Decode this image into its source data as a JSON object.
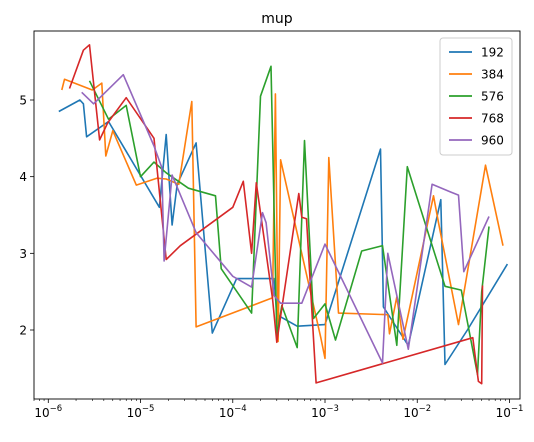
{
  "chart_data": {
    "type": "line",
    "title": "mup",
    "xlabel": "",
    "ylabel": "",
    "xscale": "log",
    "xlim": [
      7e-07,
      0.13
    ],
    "ylim": [
      1.1,
      5.9
    ],
    "xticks": [
      {
        "value": 1e-06,
        "base": "10",
        "exp": "−6"
      },
      {
        "value": 1e-05,
        "base": "10",
        "exp": "−5"
      },
      {
        "value": 0.0001,
        "base": "10",
        "exp": "−4"
      },
      {
        "value": 0.001,
        "base": "10",
        "exp": "−3"
      },
      {
        "value": 0.01,
        "base": "10",
        "exp": "−2"
      },
      {
        "value": 0.1,
        "base": "10",
        "exp": "−1"
      }
    ],
    "yticks": [
      {
        "value": 2,
        "label": "2"
      },
      {
        "value": 3,
        "label": "3"
      },
      {
        "value": 4,
        "label": "4"
      },
      {
        "value": 5,
        "label": "5"
      }
    ],
    "grid": false,
    "legend_position": "top-right",
    "series": [
      {
        "name": "192",
        "color": "#1f77b4",
        "x": [
          1.3e-06,
          2.2e-06,
          2.4e-06,
          2.6e-06,
          4.5e-06,
          1.6e-05,
          1.9e-05,
          2.2e-05,
          2.5e-05,
          4e-05,
          6e-05,
          0.00011,
          0.00028,
          0.0003,
          0.0005,
          0.001,
          0.004,
          0.0043,
          0.0075,
          0.008,
          0.018,
          0.02,
          0.035,
          0.095
        ],
        "y": [
          4.85,
          5.0,
          4.95,
          4.52,
          4.72,
          3.6,
          4.55,
          3.37,
          3.9,
          4.44,
          1.96,
          2.67,
          2.67,
          2.2,
          2.05,
          2.07,
          4.36,
          2.3,
          1.85,
          1.8,
          3.7,
          1.55,
          2.0,
          2.86
        ]
      },
      {
        "name": "384",
        "color": "#ff7f0e",
        "x": [
          1.4e-06,
          1.5e-06,
          3e-06,
          3.8e-06,
          4.2e-06,
          5e-06,
          9e-06,
          1.5e-05,
          1.9e-05,
          2.6e-05,
          3.6e-05,
          4e-05,
          0.00027,
          0.00029,
          0.00031,
          0.00033,
          0.0009,
          0.001,
          0.0011,
          0.0014,
          0.0048,
          0.005,
          0.006,
          0.007,
          0.015,
          0.017,
          0.028,
          0.055,
          0.085
        ],
        "y": [
          5.13,
          5.27,
          5.13,
          5.22,
          4.27,
          4.6,
          3.89,
          3.98,
          3.97,
          3.9,
          4.98,
          2.04,
          2.42,
          5.08,
          1.85,
          4.22,
          1.9,
          1.63,
          4.25,
          2.22,
          2.2,
          1.95,
          2.43,
          1.88,
          3.75,
          3.4,
          2.07,
          4.15,
          3.1
        ]
      },
      {
        "name": "576",
        "color": "#2ca02c",
        "x": [
          2.8e-06,
          4.5e-06,
          7e-06,
          1e-05,
          1.4e-05,
          1.9e-05,
          3.3e-05,
          6.5e-05,
          7.5e-05,
          0.00016,
          0.0002,
          0.00026,
          0.0003,
          0.00034,
          0.0005,
          0.0006,
          0.00075,
          0.001,
          0.0013,
          0.0025,
          0.0042,
          0.006,
          0.0078,
          0.02,
          0.03,
          0.045,
          0.05,
          0.06
        ],
        "y": [
          5.25,
          4.75,
          4.93,
          4.0,
          4.19,
          4.05,
          3.85,
          3.75,
          2.8,
          2.22,
          5.05,
          5.44,
          1.92,
          2.32,
          1.77,
          4.47,
          2.15,
          2.34,
          1.87,
          3.03,
          3.1,
          1.8,
          4.13,
          2.57,
          2.52,
          1.42,
          2.5,
          3.35
        ]
      },
      {
        "name": "768",
        "color": "#d62728",
        "x": [
          1.7e-06,
          2.4e-06,
          2.8e-06,
          3.6e-06,
          4.4e-06,
          7e-06,
          1.4e-05,
          1.9e-05,
          2.7e-05,
          0.0001,
          0.00013,
          0.00016,
          0.00018,
          0.00027,
          0.0003,
          0.00052,
          0.00056,
          0.00063,
          0.0008,
          0.04,
          0.046,
          0.05,
          0.051
        ],
        "y": [
          5.15,
          5.65,
          5.72,
          4.48,
          4.7,
          5.03,
          4.5,
          2.92,
          3.1,
          3.6,
          3.94,
          3.0,
          3.92,
          2.4,
          1.84,
          3.78,
          3.47,
          3.45,
          1.31,
          1.9,
          1.33,
          1.3,
          2.58
        ]
      },
      {
        "name": "960",
        "color": "#9467bd",
        "x": [
          2.3e-06,
          3.1e-06,
          6.5e-06,
          1.4e-05,
          1.7e-05,
          1.8e-05,
          2.2e-05,
          4e-05,
          0.0001,
          0.00016,
          0.00021,
          0.00023,
          0.00028,
          0.00033,
          0.00056,
          0.001,
          0.0042,
          0.0048,
          0.008,
          0.0145,
          0.023,
          0.028,
          0.032,
          0.06
        ],
        "y": [
          5.1,
          4.95,
          5.33,
          4.4,
          4.12,
          2.9,
          4.02,
          3.27,
          2.7,
          2.56,
          3.53,
          3.4,
          2.45,
          2.35,
          2.35,
          3.12,
          1.57,
          3.0,
          1.75,
          3.9,
          3.8,
          3.76,
          2.76,
          3.48
        ]
      }
    ]
  }
}
